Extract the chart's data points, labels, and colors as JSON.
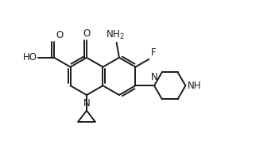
{
  "bg_color": "#ffffff",
  "line_color": "#1a1a1a",
  "text_color": "#1a1a1a",
  "linewidth": 1.4,
  "figsize": [
    3.46,
    2.06
  ],
  "dpi": 100,
  "xlim": [
    0,
    10.5
  ],
  "ylim": [
    0,
    6.0
  ]
}
